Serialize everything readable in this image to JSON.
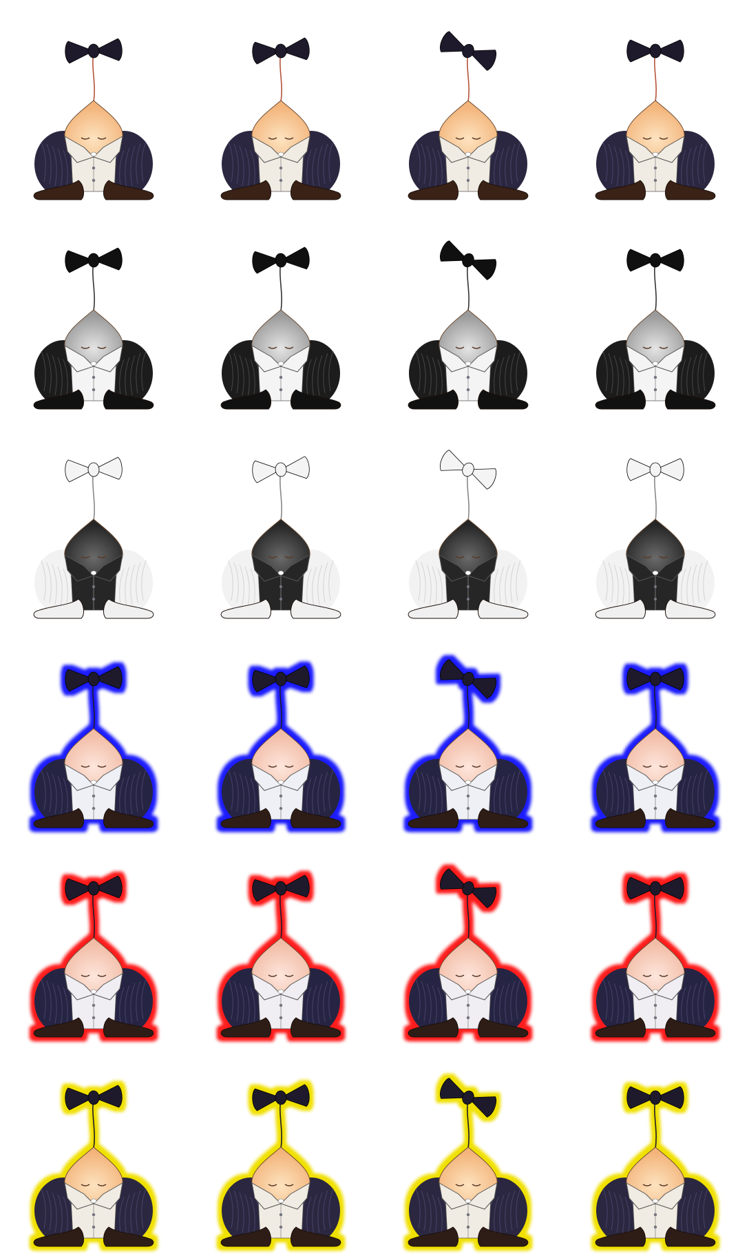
{
  "sprite_sheet": {
    "columns": 4,
    "frames": [
      {
        "bow_tilt": -3
      },
      {
        "bow_tilt": -5
      },
      {
        "bow_tilt": 22
      },
      {
        "bow_tilt": 0
      }
    ],
    "rows": [
      {
        "name": "color",
        "skin": "#f3b47a",
        "skin_light": "#fde3c0",
        "shirt": "#f1ece3",
        "coat": "#2b2740",
        "coat_line": "#55507a",
        "bow": "#1e1a2c",
        "string": "#b4533a",
        "shoes": "#3b2216",
        "glow": null
      },
      {
        "name": "grayscale",
        "skin": "#9a9a9a",
        "skin_light": "#e4e4e4",
        "shirt": "#f4f4f4",
        "coat": "#1c1c1c",
        "coat_line": "#5a5a5a",
        "bow": "#101010",
        "string": "#333333",
        "shoes": "#111111",
        "glow": null
      },
      {
        "name": "inverted",
        "skin": "#252525",
        "skin_light": "#6a6a6a",
        "shirt": "#262626",
        "coat": "#f2f2f2",
        "coat_line": "#c6c6c6",
        "bow": "#f4f4f4",
        "string": "#888888",
        "shoes": "#f0f0f0",
        "glow": null
      },
      {
        "name": "blue-glow",
        "skin": "#f2bca6",
        "skin_light": "#fde6dc",
        "shirt": "#eef0f6",
        "coat": "#262443",
        "coat_line": "#55507a",
        "bow": "#1e1a2c",
        "string": "#1e1a2c",
        "shoes": "#2e1d16",
        "glow": "#1a1aff"
      },
      {
        "name": "red-glow",
        "skin": "#f2bca6",
        "skin_light": "#fde6dc",
        "shirt": "#f0eef2",
        "coat": "#262443",
        "coat_line": "#55507a",
        "bow": "#1e1a2c",
        "string": "#1e1a2c",
        "shoes": "#2e1d16",
        "glow": "#ff1a1a"
      },
      {
        "name": "yellow-glow",
        "skin": "#f3b47a",
        "skin_light": "#fde3c0",
        "shirt": "#f1ece3",
        "coat": "#2b2740",
        "coat_line": "#55507a",
        "bow": "#1e1a2c",
        "string": "#1e1a2c",
        "shoes": "#2e1d16",
        "glow": "#f0e000"
      }
    ]
  }
}
